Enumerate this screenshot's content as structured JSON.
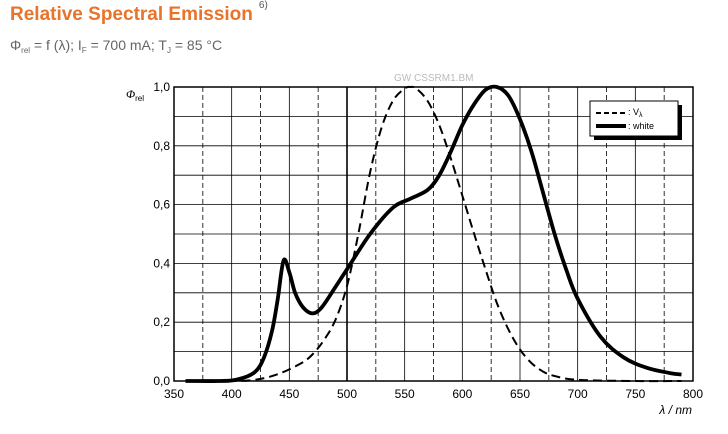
{
  "header": {
    "title": "Relative Spectral Emission",
    "footnote": "6)",
    "phi": "Φ",
    "sub_rel": "rel",
    "f": " = f (λ); I",
    "sub_f": "F",
    "mid": " = 700 mA; T",
    "sub_j": "J",
    "end": " = 85 °C"
  },
  "chart_data": {
    "type": "line",
    "code_label": "GW CSSRM1.BM",
    "ylabel_symbol": "Φ",
    "ylabel_sub": "rel",
    "xlabel": "λ / nm",
    "xlim": [
      350,
      800
    ],
    "ylim": [
      0,
      1.0
    ],
    "grid": true,
    "legend_position": "top-right",
    "x_ticks": [
      "350",
      "400",
      "450",
      "500",
      "550",
      "600",
      "650",
      "700",
      "750",
      "800"
    ],
    "y_ticks": [
      "0,0",
      "0,2",
      "0,4",
      "0,6",
      "0,8",
      "1,0"
    ],
    "series": [
      {
        "name": "V",
        "name_sub": "λ",
        "style": "dashed",
        "color": "#000000",
        "x": [
          360,
          400,
          420,
          440,
          460,
          470,
          480,
          490,
          500,
          510,
          520,
          530,
          540,
          550,
          555,
          560,
          570,
          580,
          590,
          600,
          610,
          620,
          630,
          640,
          650,
          660,
          670,
          680,
          700,
          750,
          790
        ],
        "y": [
          0.0,
          0.0,
          0.004,
          0.023,
          0.06,
          0.09,
          0.139,
          0.208,
          0.323,
          0.503,
          0.71,
          0.862,
          0.954,
          0.995,
          1.0,
          0.995,
          0.952,
          0.87,
          0.757,
          0.631,
          0.503,
          0.381,
          0.265,
          0.175,
          0.107,
          0.061,
          0.032,
          0.017,
          0.004,
          0.0,
          0.0
        ]
      },
      {
        "name": "white",
        "style": "solid",
        "color": "#000000",
        "x": [
          360,
          390,
          405,
          420,
          428,
          435,
          440,
          445,
          450,
          455,
          462,
          470,
          478,
          490,
          500,
          520,
          540,
          555,
          570,
          580,
          590,
          600,
          610,
          620,
          630,
          640,
          650,
          660,
          670,
          680,
          690,
          700,
          720,
          740,
          760,
          780,
          790
        ],
        "y": [
          0.0,
          0.0,
          0.005,
          0.03,
          0.08,
          0.17,
          0.28,
          0.41,
          0.37,
          0.3,
          0.25,
          0.23,
          0.25,
          0.32,
          0.38,
          0.5,
          0.59,
          0.62,
          0.65,
          0.7,
          0.78,
          0.87,
          0.94,
          0.99,
          1.0,
          0.97,
          0.89,
          0.78,
          0.64,
          0.5,
          0.38,
          0.28,
          0.15,
          0.08,
          0.045,
          0.027,
          0.022
        ]
      }
    ]
  }
}
